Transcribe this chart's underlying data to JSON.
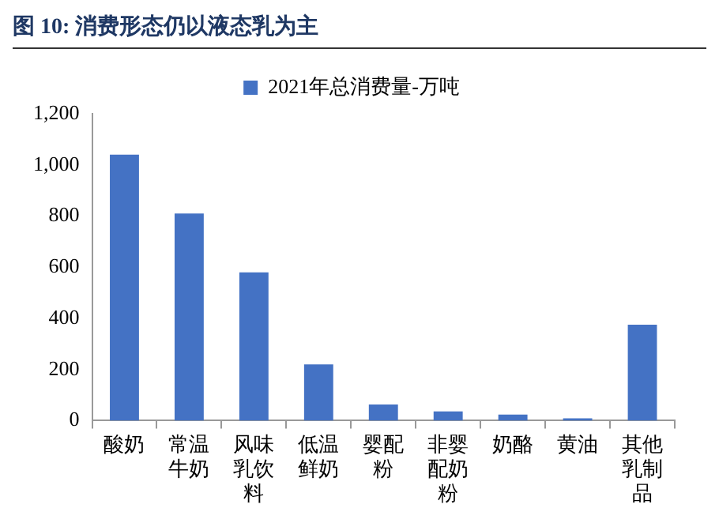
{
  "chart_data": {
    "type": "bar",
    "title": "图 10: 消费形态仍以液态乳为主",
    "categories": [
      "酸奶",
      "常温牛奶",
      "风味乳饮料",
      "低温鲜奶",
      "婴配粉",
      "非婴配奶粉",
      "奶酪",
      "黄油",
      "其他乳制品"
    ],
    "series": [
      {
        "name": "2021年总消费量-万吨",
        "color": "#4472c4",
        "values": [
          1040,
          810,
          580,
          220,
          63,
          36,
          24,
          9,
          375
        ]
      }
    ],
    "ylim": [
      0,
      1200
    ],
    "yticks": [
      0,
      200,
      400,
      600,
      800,
      {
        "value": 1000,
        "label": "1,000"
      },
      {
        "value": 1200,
        "label": "1,200"
      }
    ],
    "grid": false,
    "legend": "top"
  }
}
